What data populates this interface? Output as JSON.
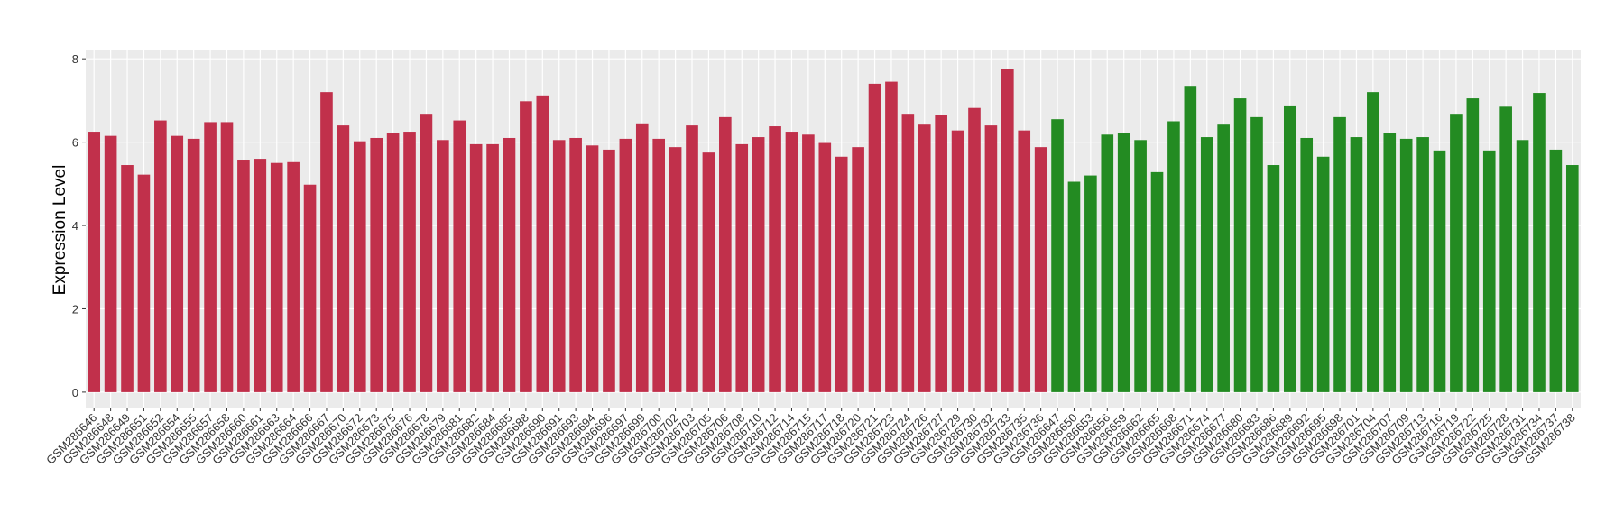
{
  "chart_data": {
    "type": "bar",
    "y_label": "Expression Level",
    "categories": [
      "GSM286646",
      "GSM286648",
      "GSM286649",
      "GSM286651",
      "GSM286652",
      "GSM286654",
      "GSM286655",
      "GSM286657",
      "GSM286658",
      "GSM286660",
      "GSM286661",
      "GSM286663",
      "GSM286664",
      "GSM286666",
      "GSM286667",
      "GSM286670",
      "GSM286672",
      "GSM286673",
      "GSM286675",
      "GSM286676",
      "GSM286678",
      "GSM286679",
      "GSM286681",
      "GSM286682",
      "GSM286684",
      "GSM286685",
      "GSM286688",
      "GSM286690",
      "GSM286691",
      "GSM286693",
      "GSM286694",
      "GSM286696",
      "GSM286697",
      "GSM286699",
      "GSM286700",
      "GSM286702",
      "GSM286703",
      "GSM286705",
      "GSM286706",
      "GSM286708",
      "GSM286710",
      "GSM286712",
      "GSM286714",
      "GSM286715",
      "GSM286717",
      "GSM286718",
      "GSM286720",
      "GSM286721",
      "GSM286723",
      "GSM286724",
      "GSM286726",
      "GSM286727",
      "GSM286729",
      "GSM286730",
      "GSM286732",
      "GSM286733",
      "GSM286735",
      "GSM286736",
      "GSM286647",
      "GSM286650",
      "GSM286653",
      "GSM286656",
      "GSM286659",
      "GSM286662",
      "GSM286665",
      "GSM286668",
      "GSM286671",
      "GSM286674",
      "GSM286677",
      "GSM286680",
      "GSM286683",
      "GSM286686",
      "GSM286689",
      "GSM286692",
      "GSM286695",
      "GSM286698",
      "GSM286701",
      "GSM286704",
      "GSM286707",
      "GSM286709",
      "GSM286713",
      "GSM286716",
      "GSM286719",
      "GSM286722",
      "GSM286725",
      "GSM286728",
      "GSM286731",
      "GSM286734",
      "GSM286737",
      "GSM286738"
    ],
    "values": [
      6.25,
      6.15,
      5.45,
      5.22,
      6.52,
      6.15,
      6.08,
      6.48,
      6.48,
      5.58,
      5.6,
      5.5,
      5.52,
      4.98,
      7.2,
      6.4,
      6.02,
      6.1,
      6.22,
      6.25,
      6.68,
      6.05,
      6.52,
      5.95,
      5.95,
      6.1,
      6.98,
      7.12,
      6.05,
      6.1,
      5.92,
      5.82,
      6.08,
      6.45,
      6.08,
      5.88,
      6.4,
      5.75,
      6.6,
      5.95,
      6.12,
      6.38,
      6.25,
      6.18,
      5.98,
      5.65,
      5.88,
      7.4,
      7.45,
      6.68,
      6.42,
      6.65,
      6.28,
      6.82,
      6.4,
      7.75,
      6.28,
      5.88,
      6.55,
      5.05,
      5.2,
      6.18,
      6.22,
      6.05,
      5.28,
      6.5,
      7.35,
      6.12,
      6.42,
      7.05,
      6.6,
      5.45,
      6.88,
      6.1,
      5.65,
      6.6,
      6.12,
      7.2,
      6.22,
      6.08,
      6.12,
      5.8,
      6.68,
      7.05,
      5.8,
      6.85,
      6.05,
      7.18,
      5.82,
      5.45
    ],
    "colors": [
      "#c1304b",
      "#c1304b",
      "#c1304b",
      "#c1304b",
      "#c1304b",
      "#c1304b",
      "#c1304b",
      "#c1304b",
      "#c1304b",
      "#c1304b",
      "#c1304b",
      "#c1304b",
      "#c1304b",
      "#c1304b",
      "#c1304b",
      "#c1304b",
      "#c1304b",
      "#c1304b",
      "#c1304b",
      "#c1304b",
      "#c1304b",
      "#c1304b",
      "#c1304b",
      "#c1304b",
      "#c1304b",
      "#c1304b",
      "#c1304b",
      "#c1304b",
      "#c1304b",
      "#c1304b",
      "#c1304b",
      "#c1304b",
      "#c1304b",
      "#c1304b",
      "#c1304b",
      "#c1304b",
      "#c1304b",
      "#c1304b",
      "#c1304b",
      "#c1304b",
      "#c1304b",
      "#c1304b",
      "#c1304b",
      "#c1304b",
      "#c1304b",
      "#c1304b",
      "#c1304b",
      "#c1304b",
      "#c1304b",
      "#c1304b",
      "#c1304b",
      "#c1304b",
      "#c1304b",
      "#c1304b",
      "#c1304b",
      "#c1304b",
      "#c1304b",
      "#c1304b",
      "#238b22",
      "#238b22",
      "#238b22",
      "#238b22",
      "#238b22",
      "#238b22",
      "#238b22",
      "#238b22",
      "#238b22",
      "#238b22",
      "#238b22",
      "#238b22",
      "#238b22",
      "#238b22",
      "#238b22",
      "#238b22",
      "#238b22",
      "#238b22",
      "#238b22",
      "#238b22",
      "#238b22",
      "#238b22",
      "#238b22",
      "#238b22",
      "#238b22",
      "#238b22",
      "#238b22",
      "#238b22",
      "#238b22",
      "#238b22",
      "#238b22",
      "#238b22"
    ],
    "ylim": [
      -0.37,
      8.22
    ],
    "yticks": [
      0,
      2,
      4,
      6,
      8
    ],
    "grid": true
  }
}
